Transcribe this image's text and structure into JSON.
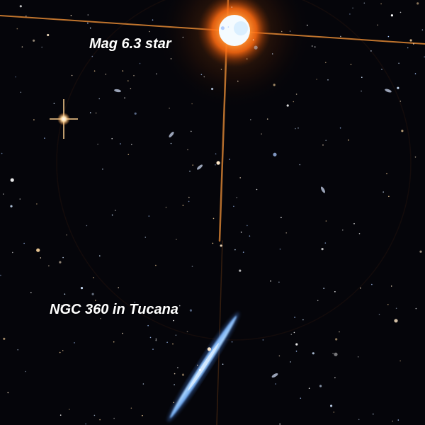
{
  "labels": {
    "star": "Mag 6.3 star",
    "galaxy": "NGC 360 in Tucana"
  },
  "colors": {
    "background": "#05050a",
    "halo": "#ff7a1a",
    "star_core": "#ffffff",
    "star_blue": "#bfe4ff",
    "galaxy": "#7fb8ff",
    "label": "#ffffff"
  }
}
